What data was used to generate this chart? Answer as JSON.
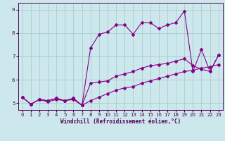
{
  "xlabel": "Windchill (Refroidissement éolien,°C)",
  "ylabel": "",
  "background_color": "#cce8ec",
  "line_color": "#880088",
  "grid_color": "#aacccc",
  "xlim": [
    -0.5,
    23.5
  ],
  "ylim": [
    4.7,
    9.3
  ],
  "yticks": [
    5,
    6,
    7,
    8,
    9
  ],
  "xticks": [
    0,
    1,
    2,
    3,
    4,
    5,
    6,
    7,
    8,
    9,
    10,
    11,
    12,
    13,
    14,
    15,
    16,
    17,
    18,
    19,
    20,
    21,
    22,
    23
  ],
  "series": [
    {
      "x": [
        0,
        1,
        2,
        3,
        4,
        5,
        6,
        7,
        8,
        9,
        10,
        11,
        12,
        13,
        14,
        15,
        16,
        17,
        18,
        19,
        20,
        21,
        22,
        23
      ],
      "y": [
        5.25,
        4.95,
        5.15,
        5.05,
        5.15,
        5.1,
        5.15,
        4.9,
        5.1,
        5.25,
        5.4,
        5.55,
        5.65,
        5.7,
        5.85,
        5.95,
        6.05,
        6.15,
        6.25,
        6.35,
        6.4,
        6.5,
        6.55,
        6.65
      ]
    },
    {
      "x": [
        0,
        1,
        2,
        3,
        4,
        5,
        6,
        7,
        8,
        9,
        10,
        11,
        12,
        13,
        14,
        15,
        16,
        17,
        18,
        19,
        20,
        21,
        22,
        23
      ],
      "y": [
        5.25,
        4.95,
        5.15,
        5.1,
        5.2,
        5.1,
        5.2,
        4.9,
        5.85,
        5.9,
        5.95,
        6.15,
        6.25,
        6.35,
        6.5,
        6.6,
        6.65,
        6.7,
        6.8,
        6.9,
        6.6,
        6.45,
        6.35,
        7.05
      ]
    },
    {
      "x": [
        0,
        1,
        2,
        3,
        4,
        5,
        6,
        7,
        8,
        9,
        10,
        11,
        12,
        13,
        14,
        15,
        16,
        17,
        18,
        19,
        20,
        21,
        22,
        23
      ],
      "y": [
        5.25,
        4.95,
        5.15,
        5.1,
        5.2,
        5.1,
        5.2,
        4.9,
        7.35,
        7.95,
        8.05,
        8.35,
        8.35,
        7.95,
        8.45,
        8.45,
        8.2,
        8.35,
        8.45,
        8.95,
        6.35,
        7.3,
        6.35,
        7.05
      ]
    }
  ]
}
